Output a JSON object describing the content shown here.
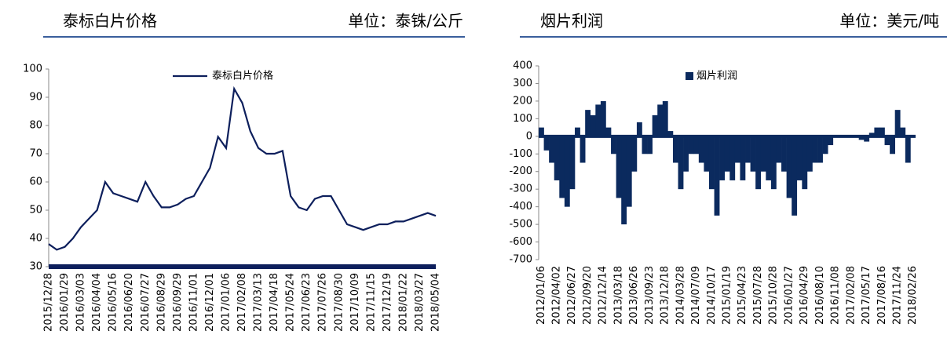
{
  "chart_data": [
    {
      "type": "line",
      "title": "泰标白片价格",
      "unit": "单位：泰铢/公斤",
      "categories": [
        "2015/12/28",
        null,
        "2016/01/29",
        null,
        "2016/03/03",
        null,
        "2016/04/04",
        null,
        "2016/05/16",
        null,
        "2016/06/20",
        null,
        "2016/07/27",
        null,
        "2016/08/29",
        null,
        "2016/09/29",
        null,
        "2016/11/01",
        null,
        "2016/12/01",
        null,
        "2017/01/06",
        null,
        "2017/02/08",
        null,
        "2017/03/13",
        null,
        "2017/04/18",
        null,
        "2017/05/24",
        null,
        "2017/06/23",
        null,
        "2017/07/26",
        null,
        "2017/08/30",
        null,
        "2017/10/09",
        null,
        "2017/11/15",
        null,
        "2017/12/19",
        null,
        "2018/01/22",
        null,
        "2018/03/27",
        null,
        "2018/05/04"
      ],
      "series": [
        {
          "name": "泰标白片价格",
          "color": "#0d1f5c",
          "values": [
            38,
            36,
            37,
            40,
            44,
            47,
            50,
            60,
            56,
            55,
            54,
            53,
            60,
            55,
            51,
            51,
            52,
            54,
            55,
            60,
            65,
            76,
            72,
            93,
            88,
            78,
            72,
            70,
            70,
            71,
            55,
            51,
            50,
            54,
            55,
            55,
            50,
            45,
            44,
            43,
            44,
            45,
            45,
            46,
            46,
            47,
            48,
            49,
            48
          ]
        }
      ],
      "ylim": [
        30,
        100
      ],
      "yticks": [
        30,
        40,
        50,
        60,
        70,
        80,
        90,
        100
      ]
    },
    {
      "type": "bar",
      "title": "烟片利润",
      "unit": "单位：美元/吨",
      "categories": [
        "2012/01/06",
        null,
        null,
        "2012/04/02",
        null,
        null,
        "2012/06/27",
        null,
        null,
        "2012/09/20",
        null,
        null,
        "2012/12/14",
        null,
        null,
        "2013/03/18",
        null,
        null,
        "2013/06/26",
        null,
        null,
        "2013/09/23",
        null,
        null,
        "2013/12/18",
        null,
        null,
        "2014/03/28",
        null,
        null,
        "2014/07/09",
        null,
        null,
        "2014/10/17",
        null,
        null,
        "2015/01/19",
        null,
        null,
        "2015/04/23",
        null,
        null,
        "2015/07/28",
        null,
        null,
        "2015/10/28",
        null,
        null,
        "2016/01/27",
        null,
        null,
        "2016/04/29",
        null,
        null,
        "2016/08/10",
        null,
        null,
        "2016/11/08",
        null,
        null,
        "2017/02/08",
        null,
        null,
        "2017/05/17",
        null,
        null,
        "2017/08/16",
        null,
        null,
        "2017/11/24",
        null,
        null,
        "2018/02/26"
      ],
      "series": [
        {
          "name": "烟片利润",
          "color": "#0b2a5e",
          "values": [
            50,
            -80,
            -150,
            -250,
            -350,
            -400,
            -300,
            50,
            -150,
            150,
            120,
            180,
            200,
            50,
            -100,
            -350,
            -500,
            -400,
            -200,
            80,
            -100,
            -100,
            120,
            180,
            200,
            30,
            -150,
            -300,
            -200,
            -100,
            -100,
            -150,
            -200,
            -300,
            -450,
            -250,
            -200,
            -250,
            -150,
            -250,
            -150,
            -200,
            -300,
            -200,
            -250,
            -300,
            -150,
            -200,
            -350,
            -450,
            -250,
            -300,
            -200,
            -150,
            -150,
            -100,
            -50,
            0,
            0,
            0,
            0,
            0,
            -20,
            -30,
            20,
            50,
            50,
            -50,
            -100,
            150,
            50,
            -150,
            0
          ]
        }
      ],
      "ylim": [
        -700,
        400
      ],
      "yticks": [
        -700,
        -600,
        -500,
        -400,
        -300,
        -200,
        -100,
        0,
        100,
        200,
        300,
        400
      ]
    }
  ]
}
